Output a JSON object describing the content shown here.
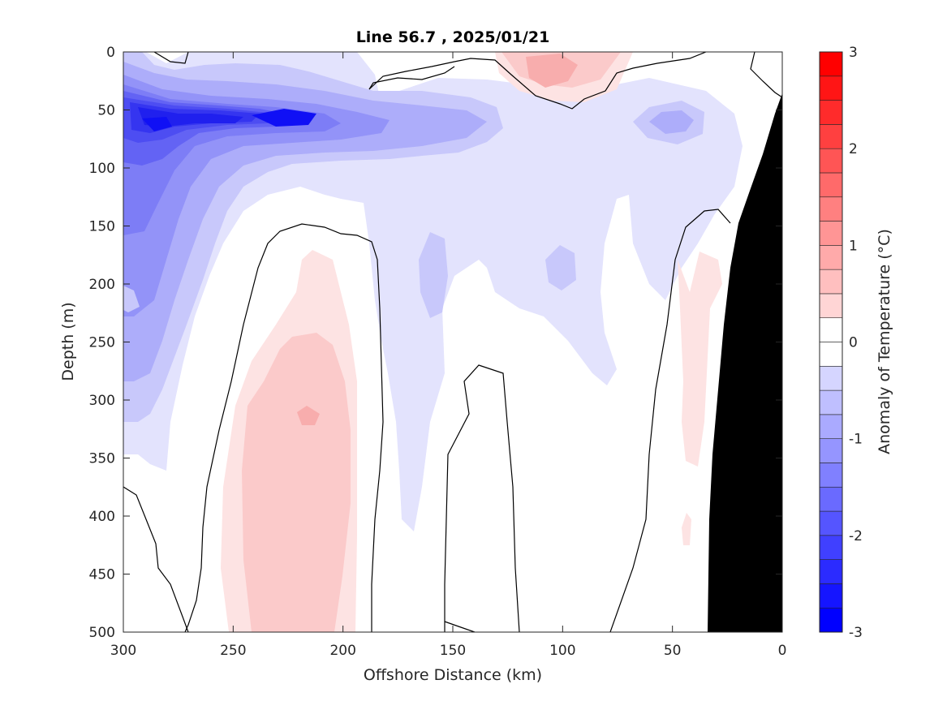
{
  "chart_data": {
    "type": "heatmap",
    "title": "Line 56.7 , 2025/01/21",
    "xlabel": "Offshore Distance (km)",
    "ylabel": "Depth (m)",
    "xlim": [
      300,
      0
    ],
    "ylim": [
      0,
      500
    ],
    "x_reversed": true,
    "y_reversed": true,
    "x_ticks": [
      300,
      250,
      200,
      150,
      100,
      50,
      0
    ],
    "y_ticks": [
      0,
      50,
      100,
      150,
      200,
      250,
      300,
      350,
      400,
      450,
      500
    ],
    "colorbar": {
      "label": "Anomaly of Temperature (°C)",
      "range": [
        -3,
        3
      ],
      "ticks": [
        -3,
        -2,
        -1,
        0,
        1,
        2,
        3
      ],
      "step": 0.25,
      "colors": {
        "neg": "#0000ff",
        "zero": "#ffffff",
        "pos": "#ff0000"
      }
    },
    "contour_level": 0,
    "colormap": "blue-white-red",
    "land_color": "#000000",
    "features": [
      {
        "name": "subsurface cold core",
        "x_center": 220,
        "depth_center": 55,
        "anomaly": -2.5
      },
      {
        "name": "offshore cold tongue",
        "x_center": 285,
        "depth_center": 65,
        "anomaly": -2.25
      },
      {
        "name": "nearshore cold eddy",
        "x_center": 40,
        "depth_center": 55,
        "anomaly": -0.75
      },
      {
        "name": "warm column",
        "x_center": 215,
        "depth_center": 330,
        "anomaly": 0.75
      },
      {
        "name": "surface warm patch",
        "x_center": 105,
        "depth_center": 20,
        "anomaly": 0.75
      },
      {
        "name": "shelf warm strip",
        "x_center": 35,
        "depth_center": 270,
        "anomaly": 0.25
      }
    ]
  }
}
